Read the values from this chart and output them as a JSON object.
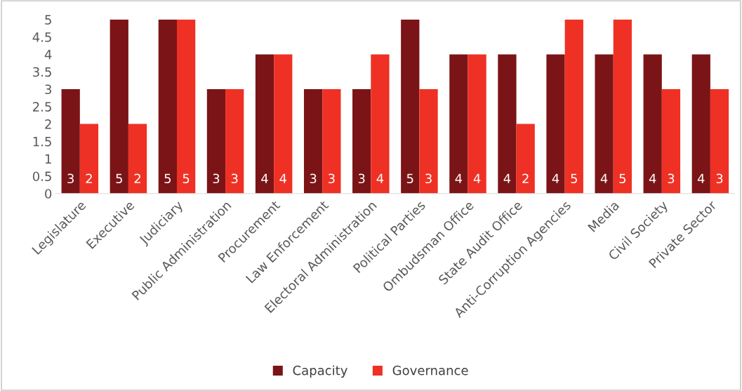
{
  "chart_data": {
    "type": "bar",
    "categories": [
      "Legislature",
      "Executive",
      "Judiciary",
      "Public Administration",
      "Procurement",
      "Law Enforcement",
      "Electoral Administration",
      "Political Parties",
      "Ombudsman Office",
      "State Audit Office",
      "Anti-Corruption Agencies",
      "Media",
      "Civil Society",
      "Private Sector"
    ],
    "series": [
      {
        "name": "Capacity",
        "color": "#7b1416",
        "values": [
          3,
          5,
          5,
          3,
          4,
          3,
          3,
          5,
          4,
          4,
          4,
          4,
          4,
          4
        ]
      },
      {
        "name": "Governance",
        "color": "#ee3124",
        "values": [
          2,
          2,
          5,
          3,
          4,
          3,
          4,
          3,
          4,
          2,
          5,
          5,
          3,
          3
        ]
      }
    ],
    "ylim": [
      0,
      5
    ],
    "yticks": [
      0,
      {
        "value": 0.5,
        "label": "0.5"
      },
      1,
      {
        "value": 1.5,
        "label": "1.5"
      },
      2,
      {
        "value": 2.5,
        "label": "2.5"
      },
      3,
      {
        "value": 3.5,
        "label": "3.5"
      },
      4,
      {
        "value": 4.5,
        "label": "4.5"
      },
      5
    ],
    "grid": false,
    "legend": "bottom",
    "data_labels": true
  }
}
